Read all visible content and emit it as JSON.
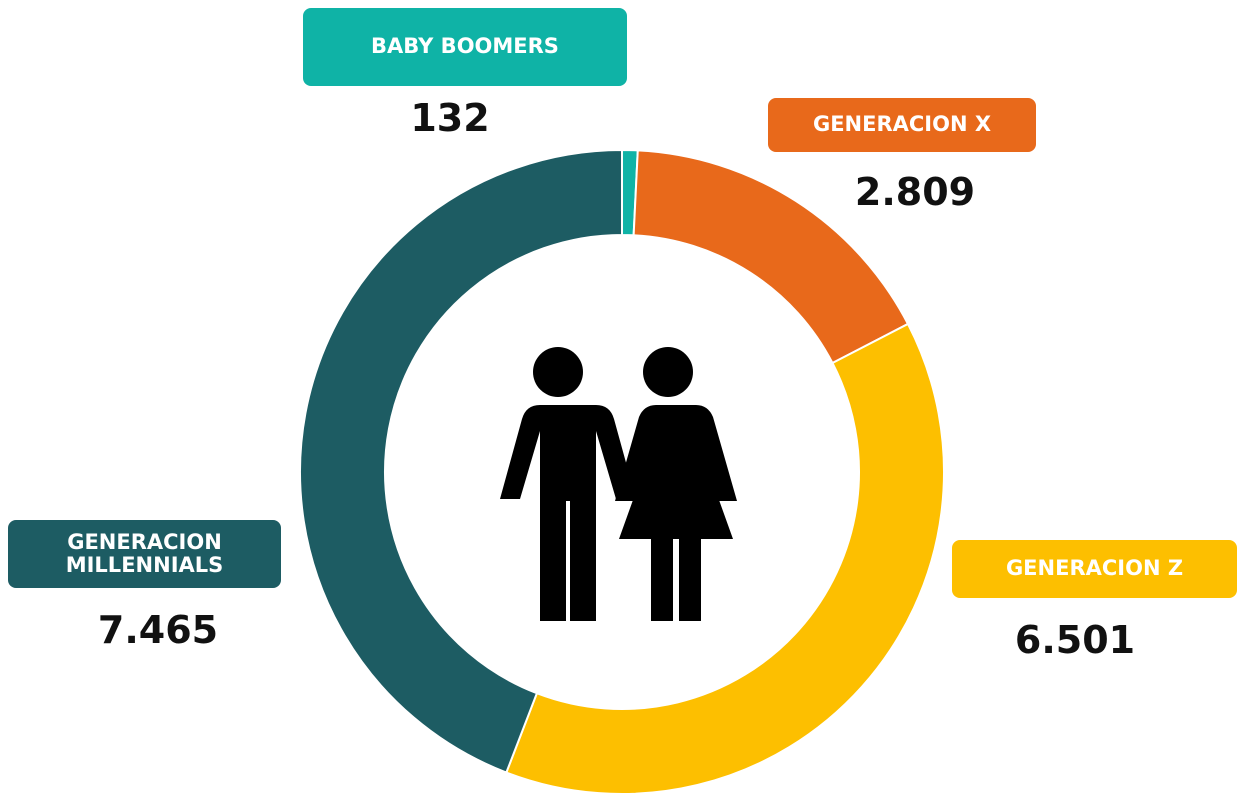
{
  "chart_data": {
    "type": "donut",
    "categories": [
      "BABY BOOMERS",
      "GENERACION X",
      "GENERACION Z",
      "GENERACION MILLENNIALS"
    ],
    "values": [
      132,
      2809,
      6501,
      7465
    ],
    "value_labels": [
      "132",
      "2.809",
      "6.501",
      "7.465"
    ],
    "colors": [
      "#0fb3a6",
      "#e8691b",
      "#fdbf00",
      "#1d5c63"
    ]
  }
}
